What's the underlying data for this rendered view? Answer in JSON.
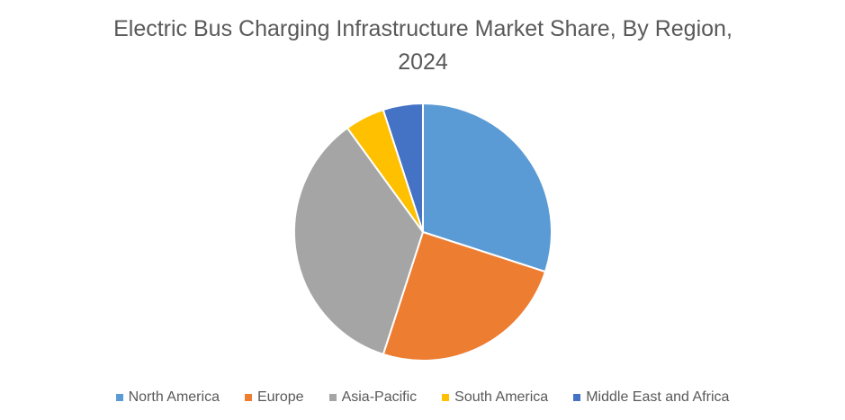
{
  "chart_data": {
    "type": "pie",
    "title": "Electric Bus Charging Infrastructure Market Share, By Region, 2024",
    "legend_position": "bottom",
    "categories": [
      "North America",
      "Europe",
      "Asia-Pacific",
      "South America",
      "Middle East and Africa"
    ],
    "values": [
      30,
      25,
      35,
      5,
      5
    ],
    "colors": [
      "#5B9BD5",
      "#ED7D31",
      "#A5A5A5",
      "#FFC000",
      "#4472C4"
    ]
  }
}
